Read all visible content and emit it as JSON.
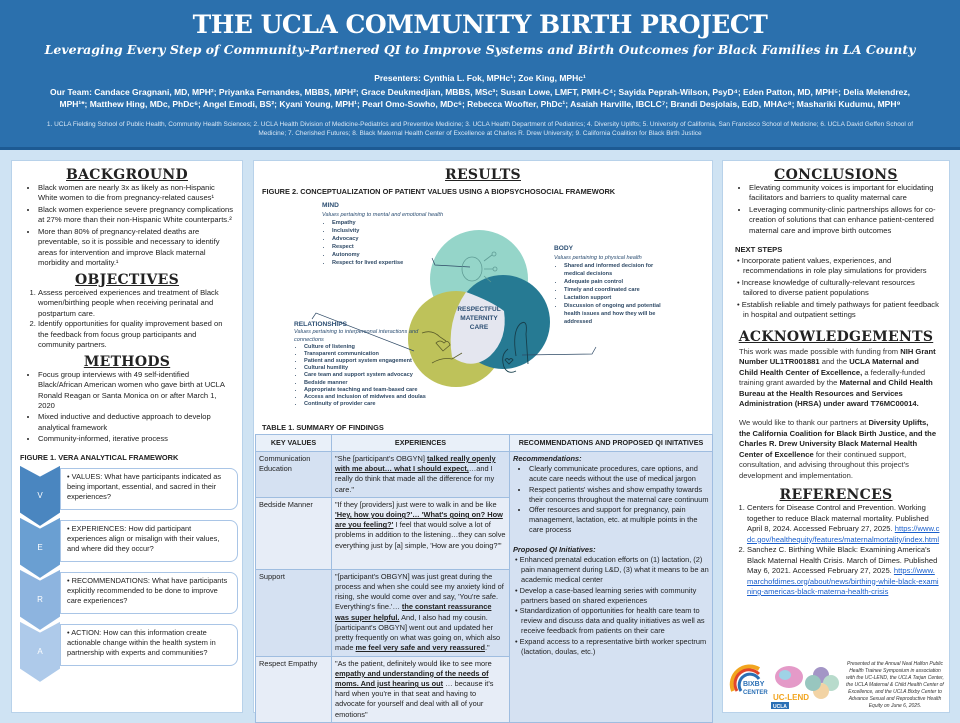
{
  "header": {
    "title": "THE UCLA COMMUNITY BIRTH PROJECT",
    "subtitle": "Leveraging Every Step of Community-Partnered QI to Improve Systems and Birth Outcomes for Black Families in LA County",
    "presenters": "Presenters: Cynthia L. Fok, MPHc¹; Zoe King, MPHc¹",
    "team": "Our Team: Candace Gragnani, MD, MPH²; Priyanka Fernandes, MBBS, MPH²; Grace Deukmedjian, MBBS, MSc³; Susan Lowe, LMFT, PMH-C⁴; Sayida Peprah-Wilson, PsyD⁴; Eden Patton, MD, MPH⁵; Delia Melendrez, MPH¹*; Matthew Hing, MDc, PhDc⁶; Angel Emodi, BS²; Kyani Young, MPH¹; Pearl Omo-Sowho, MDc⁶; Rebecca Woofter, PhDc¹; Asaiah Harville, IBCLC⁷; Brandi Desjolais, EdD, MHAc⁸; Mashariki Kudumu, MPH⁹",
    "affiliations": "1. UCLA Fielding School of Public Health, Community Health Sciences; 2. UCLA Health Division of Medicine-Pediatrics and Preventive Medicine; 3. UCLA Health Department of Pediatrics; 4. Diversity Uplifts; 5. University of California, San Francisco School of Medicine; 6. UCLA David Geffen School of Medicine; 7. Cherished Futures; 8. Black Maternal Health Center of Excellence at Charles R. Drew University; 9. California Coalition for Black Birth Justice"
  },
  "background": {
    "heading": "BACKGROUND",
    "items": [
      "Black women are nearly 3x as likely as non-Hispanic White women to die from pregnancy-related causes¹",
      "Black women experience severe pregnancy complications at 27% more than their non-Hispanic White counterparts.²",
      "More than 80% of pregnancy-related deaths are preventable, so it is possible and necessary to identify areas for intervention and improve Black maternal morbidity and mortality.¹"
    ]
  },
  "objectives": {
    "heading": "OBJECTIVES",
    "items": [
      "Assess perceived experiences and treatment of Black women/birthing people when receiving perinatal and postpartum care.",
      "Identify opportunities for quality improvement based on the feedback from focus group participants and community partners."
    ]
  },
  "methods": {
    "heading": "METHODS",
    "items": [
      "Focus group interviews with 49 self-identified Black/African American women who gave birth at UCLA Ronald Reagan or Santa Monica on or after March 1, 2020",
      "Mixed inductive and deductive approach to develop analytical framework",
      "Community-informed, iterative process"
    ]
  },
  "figure1": {
    "title": "FIGURE 1. VERA ANALYTICAL FRAMEWORK",
    "steps": [
      {
        "letter": "V",
        "text": "• VALUES: What have participants indicated as being important, essential, and sacred in their experiences?",
        "color": "#4a86c0"
      },
      {
        "letter": "E",
        "text": "• EXPERIENCES: How did participant experiences align or misalign with their values, and where did they occur?",
        "color": "#6a9fd2"
      },
      {
        "letter": "R",
        "text": "• RECOMMENDATIONS: What have participants explicitly recommended to be done to improve care experiences?",
        "color": "#8db4df"
      },
      {
        "letter": "A",
        "text": "• ACTION: How can this information create actionable change within the health system in partnership with experts and communities?",
        "color": "#aecaea"
      }
    ]
  },
  "results": {
    "heading": "RESULTS"
  },
  "figure2": {
    "title": "FIGURE 2. CONCEPTUALIZATION OF PATIENT VALUES USING A BIOPSYCHOSOCIAL FRAMEWORK",
    "center": "RESPECTFUL MATERNITY CARE",
    "mind": {
      "label": "MIND",
      "sub": "Values pertaining to mental and emotional health",
      "items": [
        "Empathy",
        "Inclusivity",
        "Advocacy",
        "Respect",
        "Autonomy",
        "Respect for lived expertise"
      ],
      "color": "#8fd3c6"
    },
    "body": {
      "label": "BODY",
      "sub": "Values pertaining to physical health",
      "items": [
        "Shared and informed decision for medical decisions",
        "Adequate pain control",
        "Timely and coordinated care",
        "Lactation support",
        "Discussion of ongoing and potential health issues and how they will be addressed"
      ],
      "color": "#267a93"
    },
    "relationships": {
      "label": "RELATIONSHIPS",
      "sub": "Values pertaining to interpersonal interactions and connections",
      "items": [
        "Culture of listening",
        "Transparent communication",
        "Patient and support system engagement",
        "Cultural humility",
        "Care team and support system advocacy",
        "Bedside manner",
        "Appropriate teaching and team-based care",
        "Access and inclusion of midwives and doulas",
        "Continuity of provider care"
      ],
      "color": "#bec25a"
    }
  },
  "table1": {
    "title": "TABLE 1. SUMMARY OF FINDINGS",
    "headers": [
      "KEY VALUES",
      "EXPERIENCES",
      "RECOMMENDATIONS AND PROPOSED QI INITATIVES"
    ],
    "rows": [
      {
        "key": "Communication Education",
        "pre": "\"She [participant's OBGYN] ",
        "em": "talked really openly with me about… what I should expect,",
        "post": "…and I really do think that made all the difference for my care.\""
      },
      {
        "key": "Bedside Manner",
        "pre": "\"If they [providers] just were to walk in and be like ",
        "em": "'Hey, how you doing?'… 'What's going on? How are you feeling?'",
        "post": " I feel that would solve a lot of problems in addition to the listening…they can solve everything just by [a] simple, 'How are you doing?'\""
      },
      {
        "key": "Support",
        "pre": "\"[participant's OBGYN] was just great during the process and when she could see my anxiety kind of rising, she would come over and say, 'You're safe. Everything's fine.'… ",
        "em": "the constant reassurance was super helpful.",
        "post": " And, I also had my cousin. [participant's OBGYN] went out and updated her pretty frequently on what was going on, which also made ",
        "em2": "me feel very safe and very reassured",
        "post2": ".\""
      },
      {
        "key": "Respect Empathy",
        "pre": "\"As the patient, definitely would like to see more ",
        "em": "empathy and understanding of the needs of moms. And just hearing us out",
        "post": " … because it's hard when you're in that seat and having to advocate for yourself and deal with all of your emotions\""
      }
    ],
    "recommendations_label": "Recommendations:",
    "recommendations": [
      "Clearly communicate procedures, care options, and acute care needs without the use of medical jargon",
      "Respect patients' wishes and show empathy towards their concerns throughout the maternal care continuum",
      "Offer resources and support for pregnancy, pain management, lactation, etc. at multiple points in the care process"
    ],
    "qi_label": "Proposed QI Initiatives:",
    "qi": [
      "Enhanced prenatal education efforts on (1) lactation, (2) pain management during L&D, (3) what it means to be an academic medical center",
      "Develop a case-based learning series with community partners based on shared experiences",
      "Standardization of opportunities for health care team to review and discuss data and quality initiatives as well as receive feedback from patients on their care",
      "Expand access to a representative birth worker spectrum (lactation, doulas, etc.)"
    ]
  },
  "conclusions": {
    "heading": "CONCLUSIONS",
    "items": [
      "Elevating community voices is important for elucidating facilitators and barriers to quality maternal care",
      "Leveraging community-clinic partnerships allows for co-creation of solutions that can enhance patient-centered maternal care and improve birth outcomes"
    ],
    "next_heading": "NEXT STEPS",
    "next": [
      "Incorporate patient values, experiences, and recommendations in role play simulations for providers",
      "Increase knowledge of culturally-relevant resources tailored to diverse patient populations",
      "Establish reliable and timely pathways for patient feedback in hospital and outpatient settings"
    ]
  },
  "acknowledgements": {
    "heading": "ACKNOWLEDGEMENTS",
    "p1": [
      "This work was made possible with funding from ",
      "NIH Grant Number UL1TR001881",
      " and the ",
      "UCLA Maternal and Child Health Center of Excellence,",
      " a federally-funded training grant awarded by the ",
      "Maternal and Child Health Bureau at the Health Resources and Services Administration (HRSA) under award T76MC00014."
    ],
    "p2": [
      "We would like to thank our partners at ",
      "Diversity Uplifts, the California Coalition for Black Birth Justice, and the Charles R. Drew University Black Maternal Health Center of Excellence",
      " for their continued support, consultation, and advising throughout this project's development and implementation."
    ]
  },
  "references": {
    "heading": "REFERENCES",
    "items": [
      {
        "text": "Centers for Disease Control and Prevention. Working together to reduce Black maternal mortality. Published April 8, 2024. Accessed February 27, 2025. ",
        "link": "https://www.cdc.gov/healthequity/features/maternalmortality/index.html"
      },
      {
        "text": "Sanchez C. Birthing While Black: Examining America's Black Maternal Health Crisis. March of Dimes. Published May 6, 2021. Accessed February 27, 2025. ",
        "link": "https://www.marchofdimes.org/about/news/birthing-while-black-examining-americas-black-materna-health-crisis"
      }
    ]
  },
  "footer": {
    "presented": "Presented at the Annual Neal Halfon Public Health Trainee Symposium in association with the UC-LEND, the UCLA Tarjan Center, the UCLA Maternal & Child Health Center of Excellence, and the UCLA Bixby Center to Advance Sexual and Reproductive Health Equity on June 6, 2025.",
    "logos": [
      "BIXBY CENTER",
      "UC-LEND",
      "UCLA",
      "Tarjan Center"
    ]
  }
}
